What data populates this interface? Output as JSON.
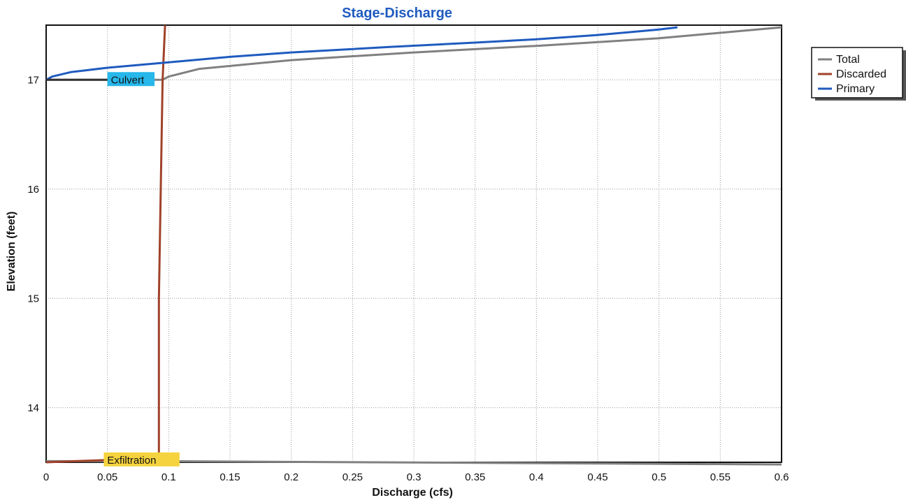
{
  "chart_data": {
    "type": "line",
    "title": "Stage-Discharge",
    "xlabel": "Discharge (cfs)",
    "ylabel": "Elevation (feet)",
    "xlim": [
      0,
      0.6
    ],
    "ylim": [
      13.5,
      17.5
    ],
    "x_ticks": [
      "0",
      "0.05",
      "0.1",
      "0.15",
      "0.2",
      "0.25",
      "0.3",
      "0.35",
      "0.4",
      "0.45",
      "0.5",
      "0.55",
      "0.6"
    ],
    "y_ticks": [
      "14",
      "15",
      "16",
      "17"
    ],
    "grid": true,
    "legend_position": "right",
    "series": [
      {
        "name": "Total",
        "color": "#808080",
        "points": [
          [
            0.0,
            13.51
          ],
          [
            0.05,
            13.51
          ],
          [
            0.093,
            13.51
          ],
          [
            0.6,
            13.48
          ]
        ],
        "points2": [
          [
            0.0,
            17.0
          ],
          [
            0.05,
            17.0
          ],
          [
            0.095,
            17.0
          ],
          [
            0.1,
            17.03
          ],
          [
            0.125,
            17.1
          ],
          [
            0.2,
            17.18
          ],
          [
            0.3,
            17.25
          ],
          [
            0.4,
            17.31
          ],
          [
            0.5,
            17.38
          ],
          [
            0.6,
            17.48
          ]
        ]
      },
      {
        "name": "Discarded",
        "color": "#a0422a",
        "points": [
          [
            0.0,
            13.5
          ],
          [
            0.047,
            13.52
          ],
          [
            0.092,
            13.52
          ],
          [
            0.092,
            15.0
          ],
          [
            0.095,
            17.0
          ],
          [
            0.097,
            17.5
          ]
        ]
      },
      {
        "name": "Primary",
        "color": "#1f5bbf",
        "points": [
          [
            0.0,
            17.0
          ],
          [
            0.005,
            17.03
          ],
          [
            0.02,
            17.07
          ],
          [
            0.05,
            17.11
          ],
          [
            0.1,
            17.16
          ],
          [
            0.15,
            17.21
          ],
          [
            0.2,
            17.25
          ],
          [
            0.28,
            17.3
          ],
          [
            0.35,
            17.34
          ],
          [
            0.4,
            17.37
          ],
          [
            0.45,
            17.41
          ],
          [
            0.5,
            17.46
          ],
          [
            0.515,
            17.48
          ]
        ]
      }
    ],
    "annotations": [
      {
        "text": "Culvert",
        "x": 0.05,
        "y": 17.0,
        "color": "#27b7ea"
      },
      {
        "text": "Exfiltration",
        "x": 0.047,
        "y": 13.52,
        "color": "#f5d33e"
      }
    ]
  }
}
